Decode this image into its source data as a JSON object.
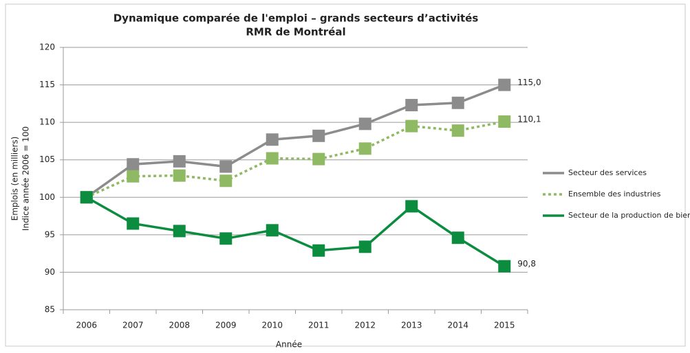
{
  "chart_data": {
    "type": "line",
    "title": [
      "Dynamique comparée de l'emploi – grands secteurs d’activités",
      "RMR de Montréal"
    ],
    "x_label": "Année",
    "y_label": [
      "Emplois (en milliers)",
      "Indice année 2006 = 100"
    ],
    "categories": [
      "2006",
      "2007",
      "2008",
      "2009",
      "2010",
      "2011",
      "2012",
      "2013",
      "2014",
      "2015"
    ],
    "series": [
      {
        "name": "Secteur des services",
        "color": "#8c8c8c",
        "dash": "solid",
        "values": [
          100,
          104.4,
          104.8,
          104.1,
          107.7,
          108.2,
          109.8,
          112.3,
          112.6,
          115.0
        ],
        "value_labels": [
          null,
          null,
          null,
          null,
          null,
          null,
          null,
          null,
          null,
          "115,0"
        ]
      },
      {
        "name": "Ensemble des industries",
        "color": "#8fba63",
        "dash": "dotted",
        "values": [
          100,
          102.8,
          102.9,
          102.2,
          105.2,
          105.1,
          106.5,
          109.5,
          108.9,
          110.1
        ],
        "value_labels": [
          null,
          null,
          null,
          null,
          null,
          null,
          null,
          null,
          null,
          "110,1"
        ]
      },
      {
        "name": "Secteur de la production de biens",
        "color": "#0b8c3f",
        "dash": "solid",
        "values": [
          100,
          96.5,
          95.5,
          94.5,
          95.6,
          92.9,
          93.4,
          98.8,
          94.6,
          90.8
        ],
        "value_labels": [
          null,
          null,
          null,
          null,
          null,
          null,
          null,
          null,
          null,
          "90,8"
        ]
      }
    ],
    "ylim": [
      85,
      120
    ],
    "yticks": [
      85,
      90,
      95,
      100,
      105,
      110,
      115,
      120
    ],
    "grid": true,
    "legend": "right"
  }
}
